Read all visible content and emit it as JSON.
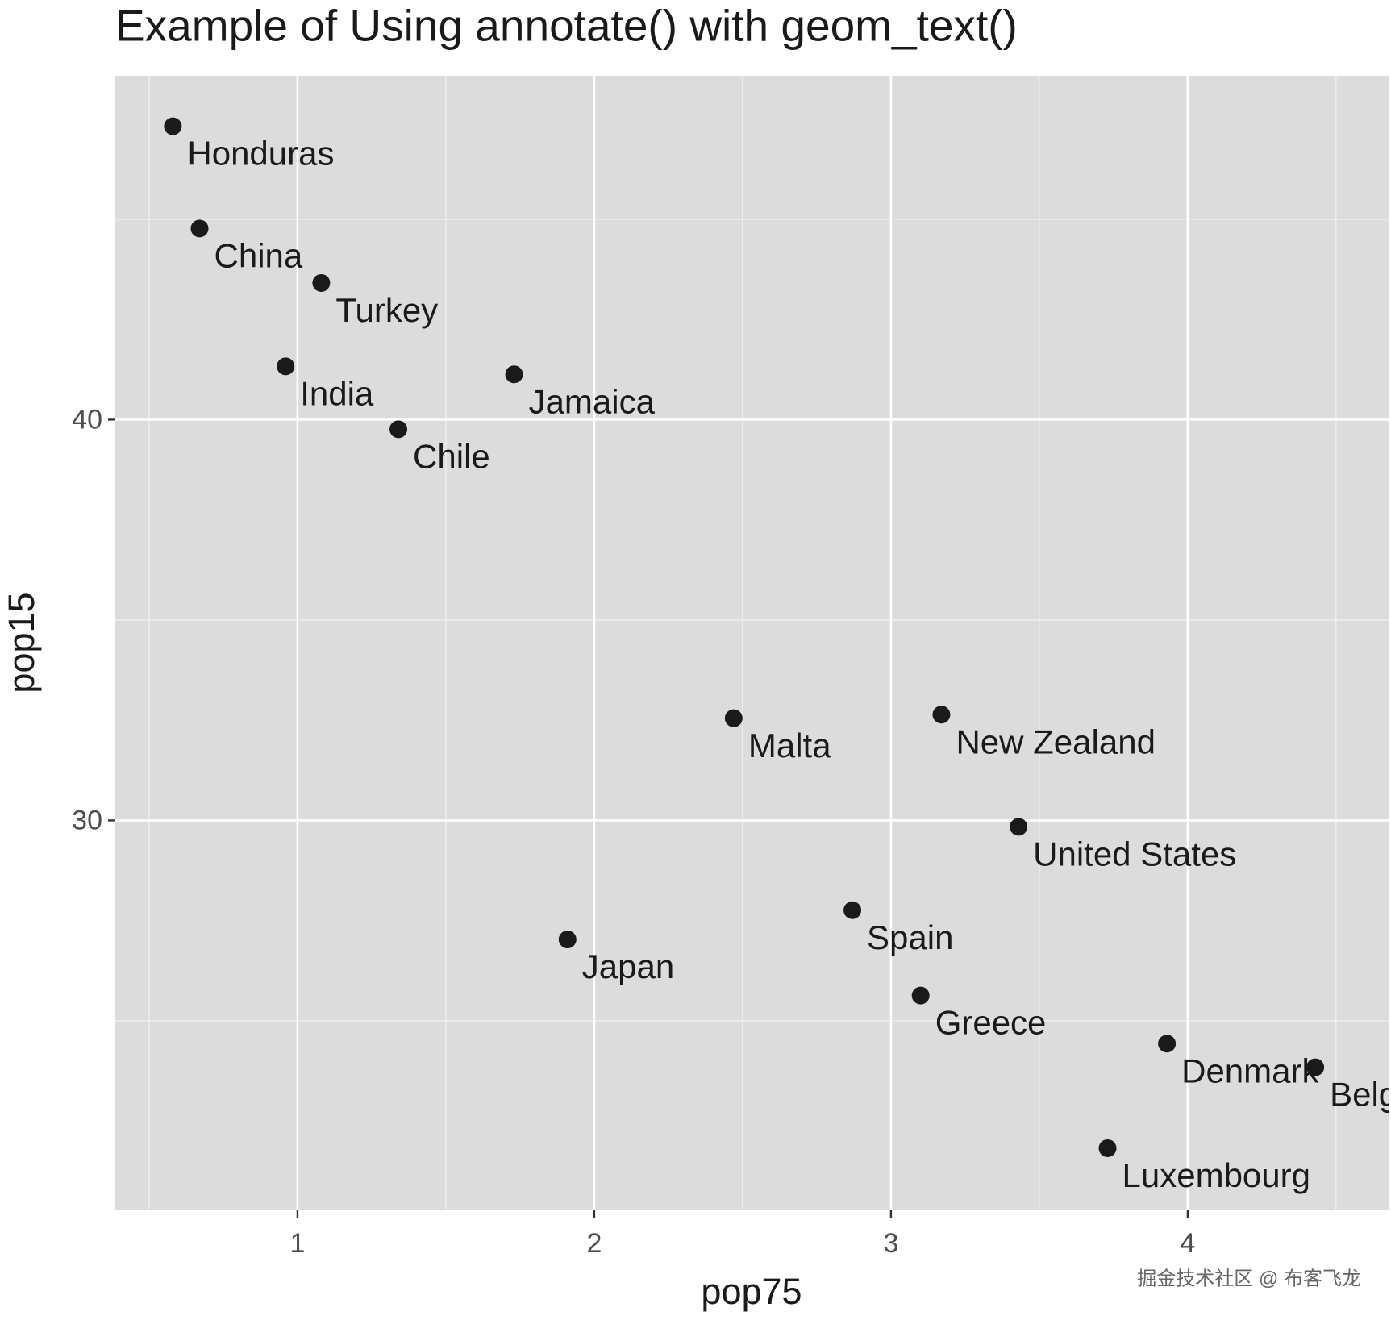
{
  "chart_data": {
    "type": "scatter",
    "title": "Example of Using annotate() with geom_text()",
    "x_label": "pop75",
    "y_label": "pop15",
    "labels": [
      "Honduras",
      "China",
      "Turkey",
      "India",
      "Jamaica",
      "Chile",
      "Malta",
      "New Zealand",
      "United States",
      "Spain",
      "Japan",
      "Greece",
      "Denmark",
      "Belgium",
      "Luxembourg"
    ],
    "x": [
      0.58,
      0.67,
      1.08,
      0.96,
      1.73,
      1.34,
      2.47,
      3.17,
      3.43,
      2.87,
      1.91,
      3.1,
      3.93,
      4.43,
      3.73
    ],
    "values": [
      47.32,
      44.77,
      43.41,
      41.33,
      41.13,
      39.76,
      32.55,
      32.64,
      29.84,
      27.76,
      27.03,
      25.63,
      24.43,
      23.84,
      21.82
    ],
    "color": "#1a1a1a",
    "xlim": [
      0.386,
      4.677
    ],
    "ylim": [
      20.27,
      48.58
    ],
    "xticks": [
      1,
      2,
      3,
      4
    ],
    "yticks": [
      30,
      40
    ],
    "xminor": [
      0.5,
      1.5,
      2.5,
      3.5,
      4.5
    ],
    "yminor": [
      25,
      35,
      45
    ],
    "grid": true,
    "watermark": "掘金技术社区 @ 布客飞龙"
  }
}
